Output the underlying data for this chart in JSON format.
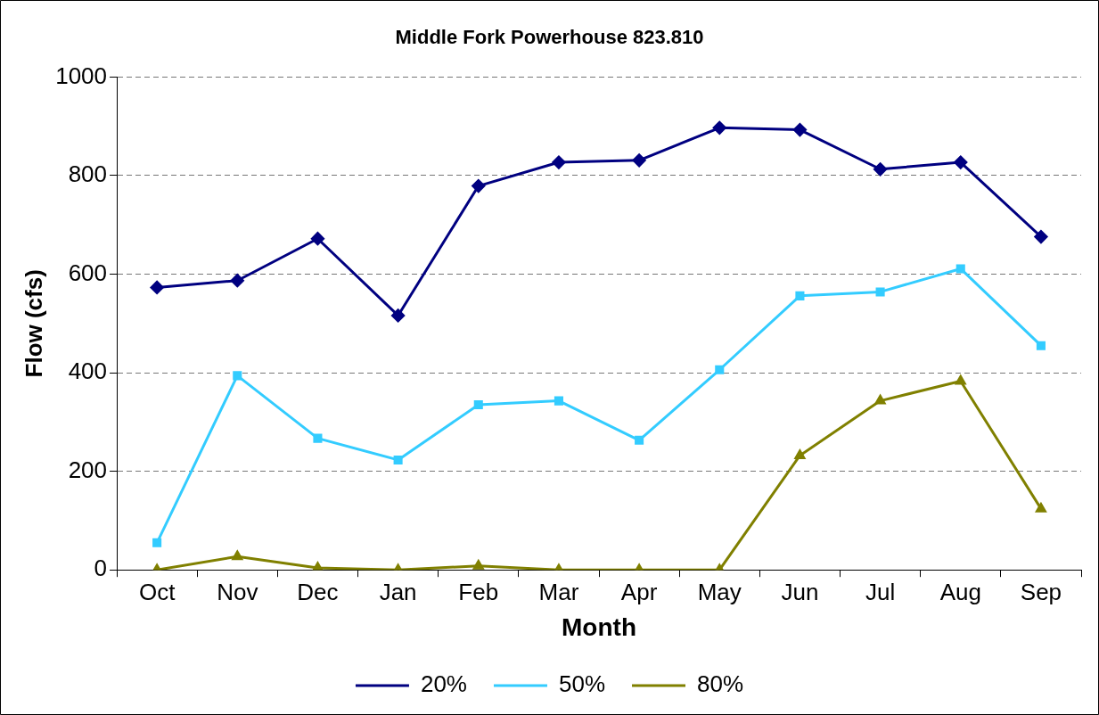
{
  "chart_data": {
    "type": "line",
    "title": "Middle Fork Powerhouse 823.810",
    "xlabel": "Month",
    "ylabel": "Flow (cfs)",
    "categories": [
      "Oct",
      "Nov",
      "Dec",
      "Jan",
      "Feb",
      "Mar",
      "Apr",
      "May",
      "Jun",
      "Jul",
      "Aug",
      "Sep"
    ],
    "series": [
      {
        "name": "20%",
        "color": "#000080",
        "marker": "diamond",
        "values": [
          573,
          587,
          672,
          516,
          779,
          827,
          831,
          897,
          893,
          813,
          827,
          676
        ]
      },
      {
        "name": "50%",
        "color": "#33ccff",
        "marker": "square",
        "values": [
          55,
          394,
          267,
          223,
          335,
          343,
          263,
          406,
          556,
          564,
          611,
          455
        ]
      },
      {
        "name": "80%",
        "color": "#808000",
        "marker": "triangle",
        "values": [
          0,
          27,
          4,
          0,
          8,
          0,
          0,
          0,
          232,
          343,
          383,
          124
        ]
      }
    ],
    "ylim": [
      0,
      1000
    ],
    "yticks": [
      0,
      200,
      400,
      600,
      800,
      1000
    ],
    "grid": "y",
    "legend": "bottom",
    "line_style": "solid"
  }
}
